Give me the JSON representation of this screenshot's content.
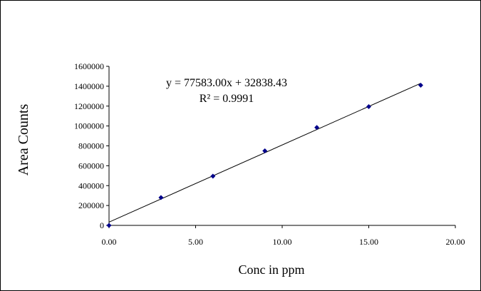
{
  "chart_data": {
    "type": "scatter",
    "title": "",
    "xlabel": "Conc in ppm",
    "ylabel": "Area Counts",
    "xlim": [
      0,
      20
    ],
    "ylim": [
      0,
      1600000
    ],
    "x_ticks": [
      "0.00",
      "5.00",
      "10.00",
      "15.00",
      "20.00"
    ],
    "y_ticks": [
      "0",
      "200000",
      "400000",
      "600000",
      "800000",
      "1000000",
      "1200000",
      "1400000",
      "1600000"
    ],
    "grid": false,
    "legend": "none",
    "series": [
      {
        "x": [
          0,
          3,
          6,
          9,
          12,
          15,
          18
        ],
        "y": [
          0,
          280000,
          495000,
          750000,
          985000,
          1195000,
          1410000
        ],
        "marker": "diamond",
        "color": "#00008B"
      }
    ],
    "trendline": {
      "type": "linear",
      "slope": 77583.0,
      "intercept": 32838.43,
      "color": "#000000"
    },
    "annotations": {
      "equation": "y = 77583.00x + 32838.43",
      "r_squared": "R² = 0.9991"
    }
  }
}
